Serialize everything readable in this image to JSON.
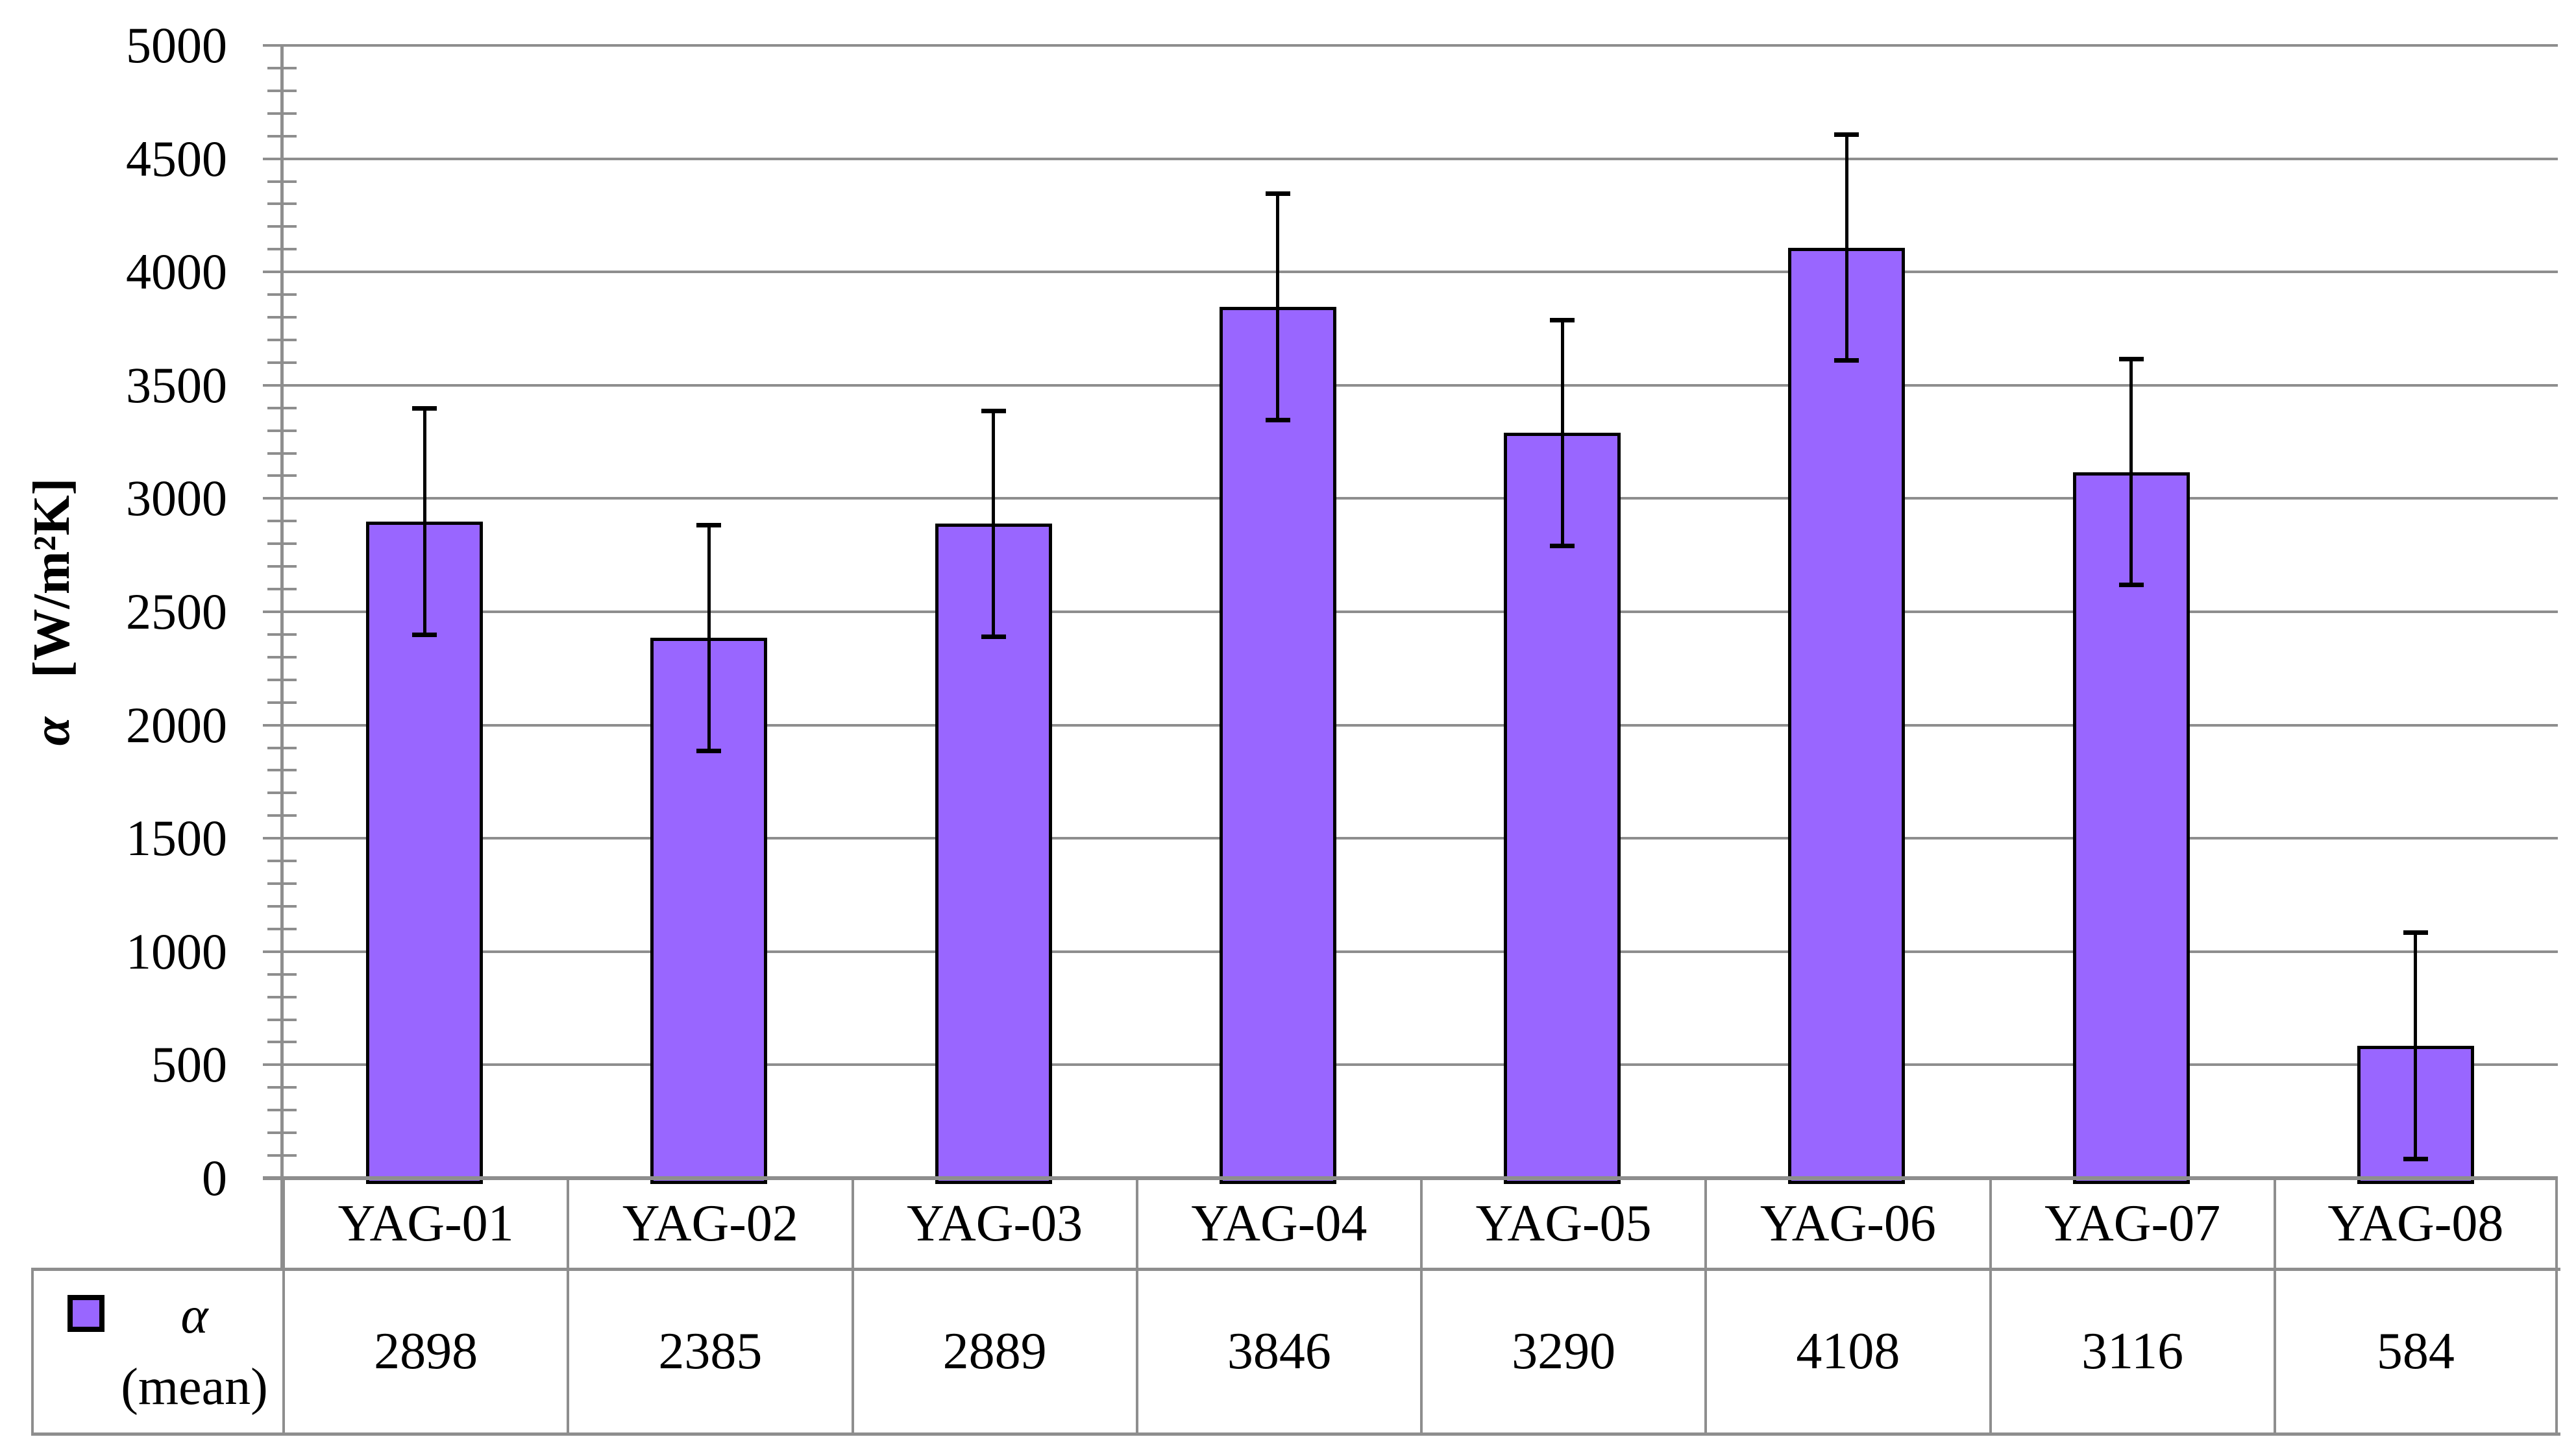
{
  "chart_data": {
    "type": "bar",
    "title": "",
    "categories": [
      "YAG-01",
      "YAG-02",
      "YAG-03",
      "YAG-04",
      "YAG-05",
      "YAG-06",
      "YAG-07",
      "YAG-08"
    ],
    "series": [
      {
        "name": "α (mean)",
        "values": [
          2898,
          2385,
          2889,
          3846,
          3290,
          4108,
          3116,
          584
        ],
        "errors": [
          500,
          500,
          500,
          500,
          500,
          500,
          500,
          500
        ]
      }
    ],
    "ylabel": "α [W/m²K]",
    "ylabel_symbol": "α",
    "ylabel_unit": "[W/m²K]",
    "ylim": [
      0,
      5000
    ],
    "ytick_step": 500,
    "minor_tick_step": 100,
    "grid": true,
    "legend_position": "data-table-left",
    "legend": {
      "symbol": "α",
      "label": "(mean)"
    },
    "data_table_shown": true,
    "colors": {
      "bar_fill": "#9966FF",
      "bar_border": "#000000",
      "grid": "#8E8E8E",
      "text": "#000000",
      "background": "#FFFFFF"
    }
  }
}
